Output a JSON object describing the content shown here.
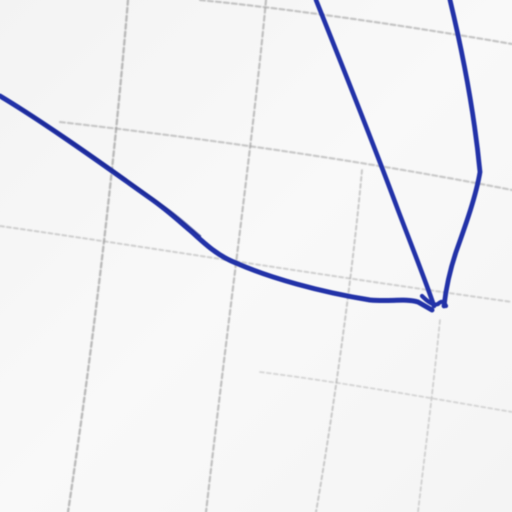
{
  "scene": {
    "subject": "blue-ink-sketch-on-grid-paper",
    "colors": {
      "paper": "#f6f6f6",
      "grid_line": "#9e9e9e",
      "ink": "#2432a8"
    }
  }
}
